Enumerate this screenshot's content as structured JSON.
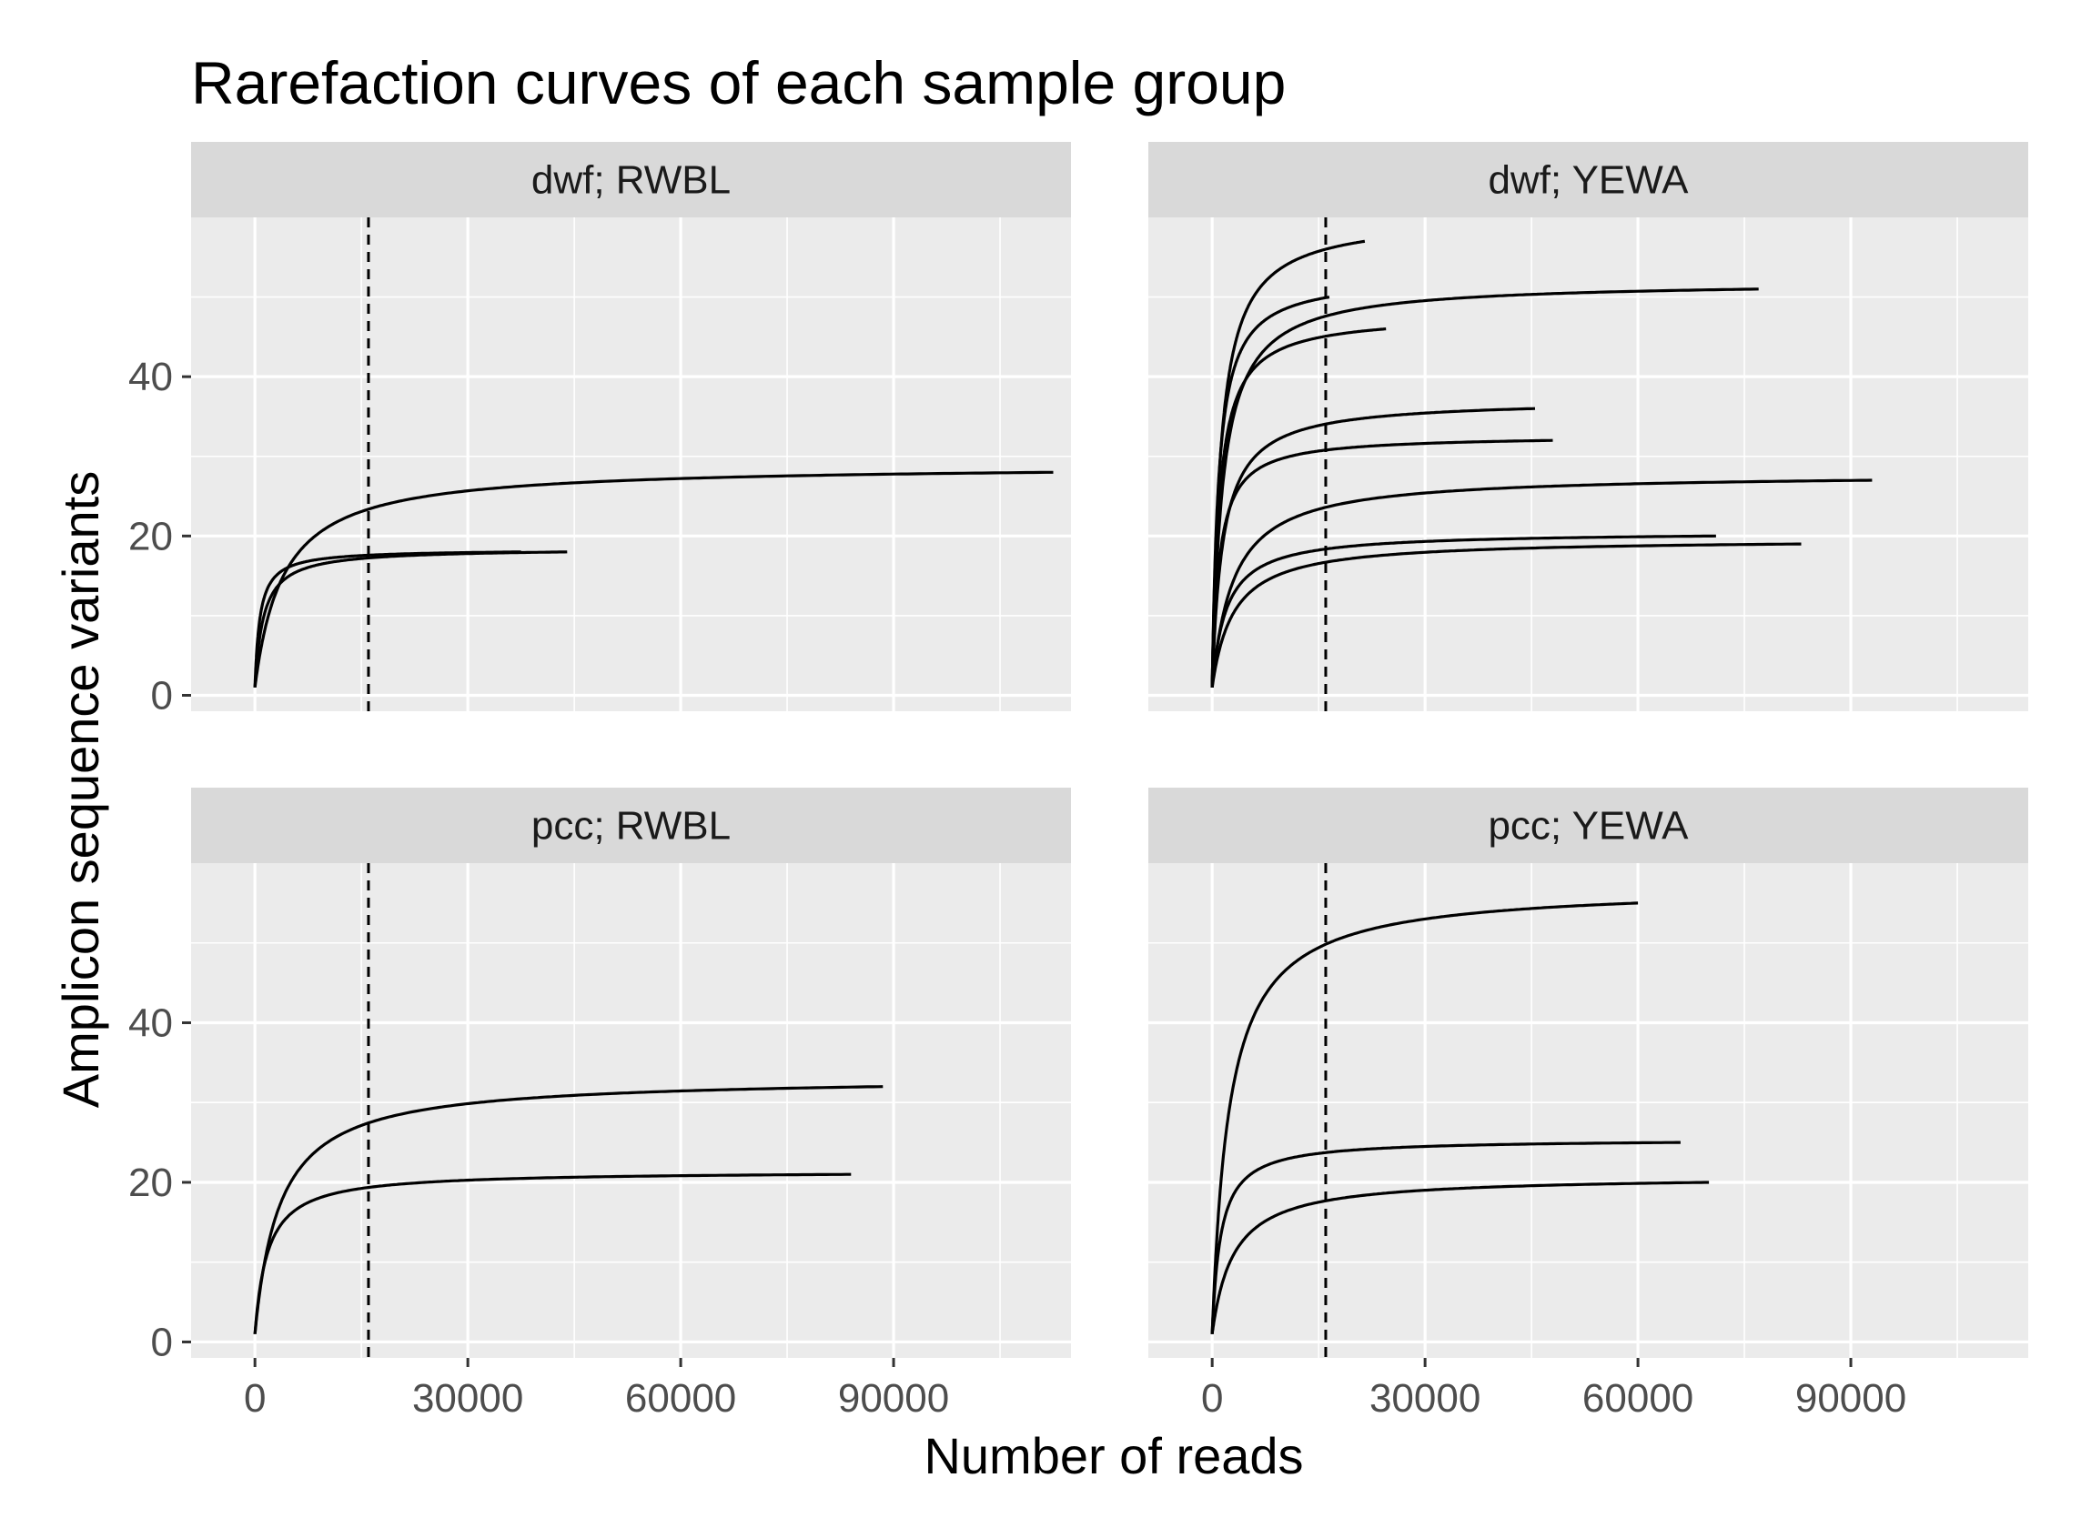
{
  "chart_data": {
    "type": "line",
    "title": "Rarefaction curves of each sample group",
    "xlabel": "Number of reads",
    "ylabel": "Amplicon sequence variants",
    "xlim": [
      -9000,
      115000
    ],
    "ylim": [
      -2,
      60
    ],
    "x_ticks": [
      0,
      30000,
      60000,
      90000
    ],
    "y_ticks": [
      0,
      20,
      40
    ],
    "grid": true,
    "legend": "none",
    "reference_line": {
      "x": 16000,
      "style": "dashed"
    },
    "panels": [
      {
        "label": "dwf; RWBL",
        "curves": [
          {
            "max_reads": 112500,
            "max_asv": 28,
            "k": 4000
          },
          {
            "max_reads": 44000,
            "max_asv": 18,
            "k": 1200
          },
          {
            "max_reads": 37500,
            "max_asv": 18,
            "k": 700
          }
        ]
      },
      {
        "label": "dwf; YEWA",
        "curves": [
          {
            "max_reads": 21500,
            "max_asv": 57,
            "k": 1200
          },
          {
            "max_reads": 16500,
            "max_asv": 50,
            "k": 900
          },
          {
            "max_reads": 77000,
            "max_asv": 51,
            "k": 1500
          },
          {
            "max_reads": 24500,
            "max_asv": 46,
            "k": 1000
          },
          {
            "max_reads": 45500,
            "max_asv": 36,
            "k": 1500
          },
          {
            "max_reads": 48000,
            "max_asv": 32,
            "k": 1000
          },
          {
            "max_reads": 93000,
            "max_asv": 27,
            "k": 3000
          },
          {
            "max_reads": 71000,
            "max_asv": 20,
            "k": 2000
          },
          {
            "max_reads": 83000,
            "max_asv": 19,
            "k": 3000
          }
        ]
      },
      {
        "label": "pcc; RWBL",
        "curves": [
          {
            "max_reads": 88500,
            "max_asv": 32,
            "k": 3500
          },
          {
            "max_reads": 84000,
            "max_asv": 21,
            "k": 1800
          }
        ]
      },
      {
        "label": "pcc; YEWA",
        "curves": [
          {
            "max_reads": 60000,
            "max_asv": 55,
            "k": 2400
          },
          {
            "max_reads": 66000,
            "max_asv": 25,
            "k": 1200
          },
          {
            "max_reads": 70000,
            "max_asv": 20,
            "k": 3000
          }
        ]
      }
    ]
  }
}
